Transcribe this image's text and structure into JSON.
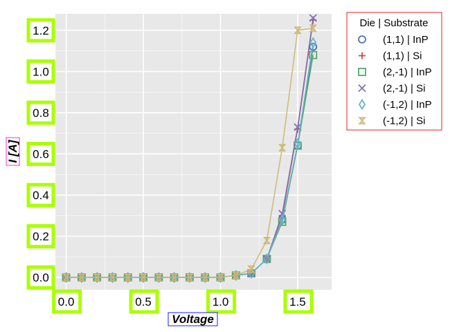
{
  "chart_data": {
    "type": "line",
    "xlabel": "Voltage",
    "ylabel": "I [A]",
    "xlim": [
      -0.07,
      1.72
    ],
    "ylim": [
      -0.06,
      1.28
    ],
    "xticks": [
      "0.0",
      "0.5",
      "1.0",
      "1.5"
    ],
    "xtick_values": [
      0.0,
      0.5,
      1.0,
      1.5
    ],
    "yticks": [
      "0.0",
      "0.2",
      "0.4",
      "0.6",
      "0.8",
      "1.0",
      "1.2"
    ],
    "ytick_values": [
      0.0,
      0.2,
      0.4,
      0.6,
      0.8,
      1.0,
      1.2
    ],
    "grid": true,
    "legend_title": "Die | Substrate",
    "legend_placement": "outside-right-top",
    "x": [
      0.0,
      0.1,
      0.2,
      0.3,
      0.4,
      0.5,
      0.6,
      0.7,
      0.8,
      0.9,
      1.0,
      1.1,
      1.2,
      1.3,
      1.4,
      1.5,
      1.6
    ],
    "series": [
      {
        "name": "(1,1) | InP",
        "color": "#4c72b0",
        "marker": "circle",
        "values": [
          0,
          0,
          0,
          0,
          0,
          0,
          0,
          0,
          0,
          0,
          0,
          0.01,
          0.02,
          0.09,
          0.28,
          0.64,
          1.12
        ]
      },
      {
        "name": "(1,1) | Si",
        "color": "#c44e52",
        "marker": "plus",
        "values": [
          0,
          0,
          0,
          0,
          0,
          0,
          0,
          0,
          0,
          0,
          0,
          0.01,
          0.02,
          0.09,
          0.3,
          0.72,
          1.25
        ]
      },
      {
        "name": "(2,-1) | InP",
        "color": "#55a868",
        "marker": "square",
        "values": [
          0,
          0,
          0,
          0,
          0,
          0,
          0,
          0,
          0,
          0,
          0,
          0.01,
          0.02,
          0.09,
          0.27,
          0.64,
          1.08
        ]
      },
      {
        "name": "(2,-1) | Si",
        "color": "#8172b2",
        "marker": "x",
        "values": [
          0,
          0,
          0,
          0,
          0,
          0,
          0,
          0,
          0,
          0,
          0,
          0.01,
          0.02,
          0.09,
          0.31,
          0.73,
          1.26
        ]
      },
      {
        "name": "(-1,2) | InP",
        "color": "#64b5cd",
        "marker": "diamond",
        "values": [
          0,
          0,
          0,
          0,
          0,
          0,
          0,
          0,
          0,
          0,
          0,
          0.01,
          0.02,
          0.09,
          0.28,
          0.65,
          1.14
        ]
      },
      {
        "name": "(-1,2) | Si",
        "color": "#ccb974",
        "marker": "hourglass",
        "values": [
          0,
          0,
          0,
          0,
          0,
          0,
          0,
          0,
          0,
          0,
          0,
          0.01,
          0.04,
          0.18,
          0.63,
          1.2,
          1.21
        ]
      }
    ]
  }
}
